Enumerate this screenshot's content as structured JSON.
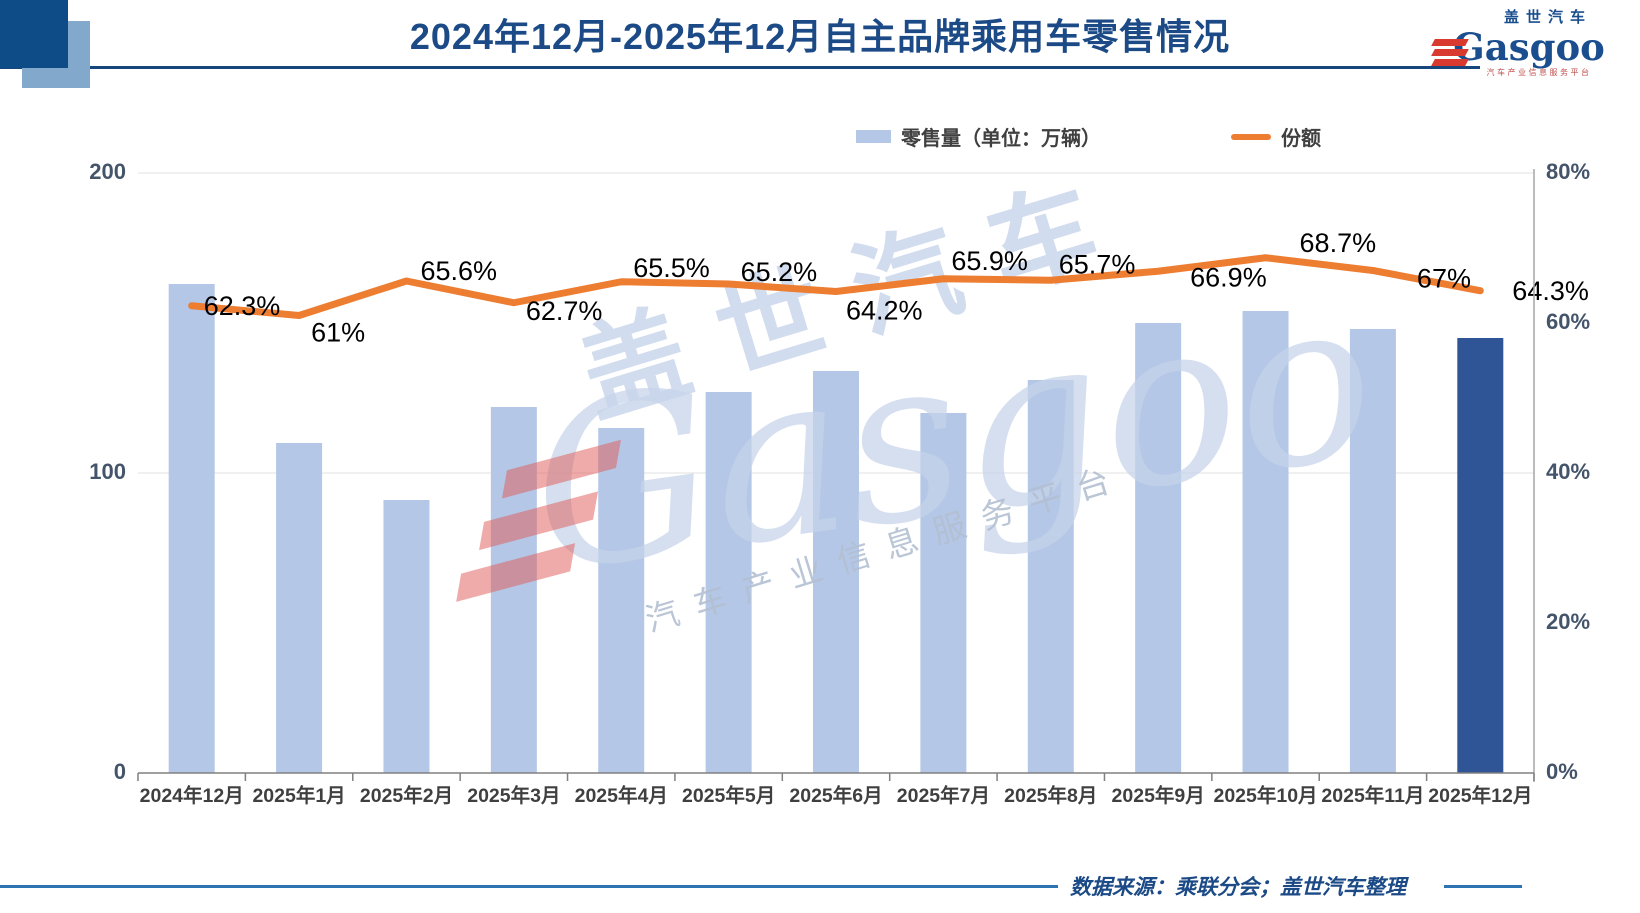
{
  "header": {
    "title": "2024年12月-2025年12月自主品牌乘用车零售情况",
    "logo": {
      "cn": "盖世汽车",
      "en": "Gasgoo",
      "tagline": "汽车产业信息服务平台"
    }
  },
  "legend": {
    "bar_label": "零售量（单位：万辆）",
    "line_label": "份额"
  },
  "chart_data": {
    "type": "combo",
    "categories": [
      "2024年12月",
      "2025年1月",
      "2025年2月",
      "2025年3月",
      "2025年4月",
      "2025年5月",
      "2025年6月",
      "2025年7月",
      "2025年8月",
      "2025年9月",
      "2025年10月",
      "2025年11月",
      "2025年12月"
    ],
    "series": [
      {
        "name": "零售量（单位：万辆）",
        "type": "bar",
        "unit": "万辆",
        "values": [
          163,
          110,
          91,
          122,
          115,
          127,
          134,
          120,
          131,
          150,
          154,
          148,
          145
        ],
        "highlight_index": 12
      },
      {
        "name": "份额",
        "type": "line",
        "unit": "%",
        "values": [
          62.3,
          61,
          65.6,
          62.7,
          65.5,
          65.2,
          64.2,
          65.9,
          65.7,
          66.9,
          68.7,
          67,
          64.3
        ],
        "labels": [
          "62.3%",
          "61%",
          "65.6%",
          "62.7%",
          "65.5%",
          "65.2%",
          "64.2%",
          "65.9%",
          "65.7%",
          "66.9%",
          "68.7%",
          "67%",
          "64.3%"
        ]
      }
    ],
    "left_axis": {
      "min": 0,
      "max": 200,
      "ticks": [
        "0",
        "100",
        "200"
      ]
    },
    "right_axis": {
      "min": 0,
      "max": 80,
      "ticks": [
        "0%",
        "20%",
        "40%",
        "60%",
        "80%"
      ]
    },
    "grid": "horizontal lines at left-axis ticks 100 and 200",
    "legend_position": "top"
  },
  "watermark": {
    "cn": "盖世汽车",
    "en": "Gasgoo",
    "tagline": "汽车产业信息服务平台"
  },
  "footer": {
    "source": "数据来源：乘联分会；盖世汽车整理"
  },
  "colors": {
    "bar": "#B4C7E7",
    "bar_highlight": "#2F5597",
    "line": "#ED7D31",
    "title": "#1B4A86",
    "axis_label": "#44546A",
    "x_label": "#3F3F3F",
    "share_label": "#000000",
    "grid_line": "#E2E2E2",
    "axis_line": "#808080",
    "right_axis_line": "#A6A6A6",
    "header_dark_square": "#0D4C86",
    "header_light_square": "#82A9CB",
    "header_line": "#16477C",
    "footer_line": "#2E74B5",
    "footer_text": "#1B4A86",
    "logo_blue": "#1B4E8E",
    "logo_red": "#D93A30",
    "watermark_blue": "#C6D4EA"
  }
}
